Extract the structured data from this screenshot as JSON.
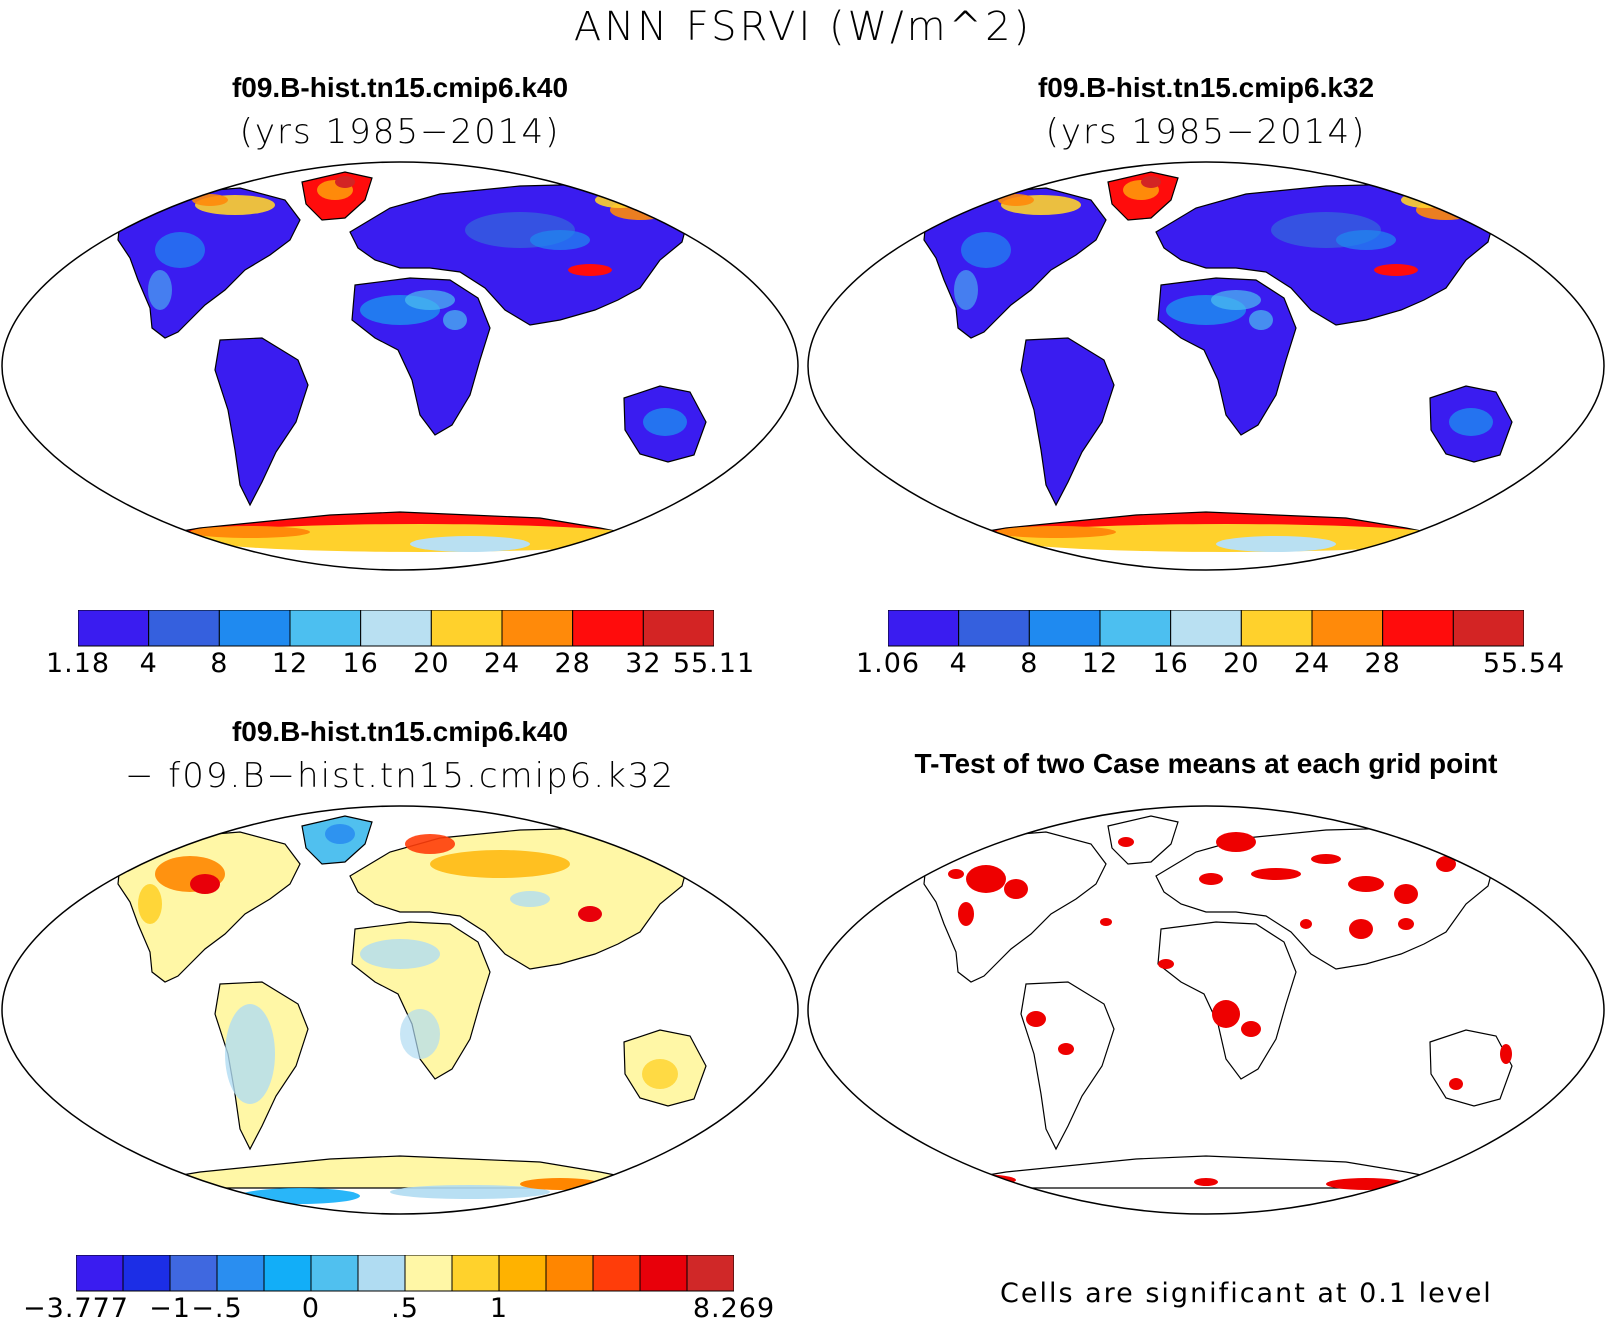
{
  "figure": {
    "title": "ANN FSRVI (W/m^2)"
  },
  "panels": [
    {
      "id": "case1",
      "title": "f09.B-hist.tn15.cmip6.k40",
      "subtitle": "(yrs 1985−2014)",
      "colorbar": {
        "colors": [
          "#3a1cf0",
          "#3560de",
          "#1f8af0",
          "#4cbff0",
          "#b9e0f2",
          "#ffd12c",
          "#ff8a0a",
          "#ff0c0c",
          "#d32424"
        ],
        "labels": [
          "1.18",
          "4",
          "8",
          "12",
          "16",
          "20",
          "24",
          "28",
          "32",
          "55.11"
        ]
      }
    },
    {
      "id": "case2",
      "title": "f09.B-hist.tn15.cmip6.k32",
      "subtitle": "(yrs 1985−2014)",
      "colorbar": {
        "colors": [
          "#3a1cf0",
          "#3560de",
          "#1f8af0",
          "#4cbff0",
          "#b9e0f2",
          "#ffd12c",
          "#ff8a0a",
          "#ff0c0c",
          "#d32424"
        ],
        "labels": [
          "1.06",
          "4",
          "8",
          "12",
          "16",
          "20",
          "24",
          "28",
          "",
          "55.54"
        ]
      }
    },
    {
      "id": "diff",
      "title": "f09.B-hist.tn15.cmip6.k40",
      "subtitle": "− f09.B−hist.tn15.cmip6.k32",
      "colorbar": {
        "colors": [
          "#3a1cf0",
          "#1c2ee6",
          "#3f68e0",
          "#2a8ef0",
          "#12aef8",
          "#50c0ef",
          "#b0dcf2",
          "#fff7a6",
          "#ffd22c",
          "#ffb200",
          "#ff8600",
          "#ff3d0a",
          "#e8000a",
          "#d02828"
        ],
        "labels": [
          "−3.777",
          "",
          "−1",
          "−.5",
          "",
          "0",
          "",
          ".5",
          "",
          "1",
          "",
          "",
          "",
          "",
          "8.269"
        ],
        "label_index": [
          0,
          2,
          3,
          5,
          7,
          9,
          14
        ]
      }
    },
    {
      "id": "ttest",
      "title": "T-Test of two Case means at each grid point",
      "note": "Cells are significant at 0.1 level"
    }
  ]
}
